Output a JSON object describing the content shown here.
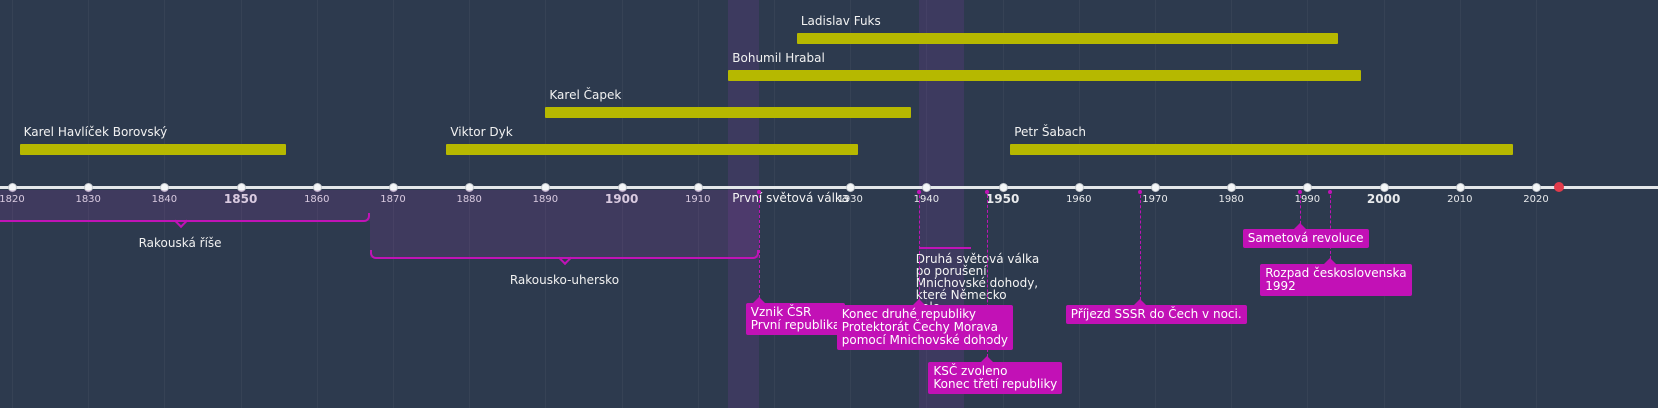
{
  "colors": {
    "background": "#2d3a4e",
    "life_bar": "#b6b800",
    "event": "#c211b6",
    "axis": "#e4e7ea",
    "now_marker": "#e23b4b"
  },
  "axis": {
    "ticks": [
      {
        "year": 1820,
        "label": "1820",
        "major": false
      },
      {
        "year": 1830,
        "label": "1830",
        "major": false
      },
      {
        "year": 1840,
        "label": "1840",
        "major": false
      },
      {
        "year": 1850,
        "label": "1850",
        "major": true
      },
      {
        "year": 1860,
        "label": "1860",
        "major": false
      },
      {
        "year": 1870,
        "label": "1870",
        "major": false
      },
      {
        "year": 1880,
        "label": "1880",
        "major": false
      },
      {
        "year": 1890,
        "label": "1890",
        "major": false
      },
      {
        "year": 1900,
        "label": "1900",
        "major": true
      },
      {
        "year": 1910,
        "label": "1910",
        "major": false
      },
      {
        "year": 1930,
        "label": "1930",
        "major": false
      },
      {
        "year": 1940,
        "label": "1940",
        "major": false
      },
      {
        "year": 1950,
        "label": "1950",
        "major": true
      },
      {
        "year": 1960,
        "label": "1960",
        "major": false
      },
      {
        "year": 1970,
        "label": "1970",
        "major": false
      },
      {
        "year": 1980,
        "label": "1980",
        "major": false
      },
      {
        "year": 1990,
        "label": "1990",
        "major": false
      },
      {
        "year": 2000,
        "label": "2000",
        "major": true
      },
      {
        "year": 2010,
        "label": "2010",
        "major": false
      },
      {
        "year": 2020,
        "label": "2020",
        "major": false
      }
    ],
    "now_year": 2023
  },
  "lifespans": [
    {
      "name": "Karel Havlíček Borovský",
      "start": 1821,
      "end": 1856
    },
    {
      "name": "Viktor Dyk",
      "start": 1877,
      "end": 1931
    },
    {
      "name": "Karel Čapek",
      "start": 1890,
      "end": 1938
    },
    {
      "name": "Bohumil Hrabal",
      "start": 1914,
      "end": 1997
    },
    {
      "name": "Ladislav Fuks",
      "start": 1923,
      "end": 1994
    },
    {
      "name": "Petr Šabach",
      "start": 1951,
      "end": 2017
    }
  ],
  "bands": [
    {
      "start": 1914,
      "end": 1918
    },
    {
      "start": 1939,
      "end": 1945
    }
  ],
  "periods": [
    {
      "label": "Rakouská říše",
      "start": 1804,
      "end": 1867
    },
    {
      "label": "Rakousko-uhersko",
      "start": 1867,
      "end": 1918
    }
  ],
  "plain_events": [
    {
      "text": "První světová válka",
      "year": 1914
    }
  ],
  "text_events": [
    {
      "text": "Druhá světová válka\npo porušení\nMnichovské dohody,\nkteré Německo\nsalo.",
      "year": 1939
    }
  ],
  "events": [
    {
      "text": "Vznik ČSR\nPrvní republika",
      "year": 1918
    },
    {
      "text": "Konec druhé republiky\nProtektorát Čechy Morava\npomocí Mnichovské dohody",
      "year": 1939
    },
    {
      "text": "KSČ zvoleno\nKonec třetí republiky",
      "year": 1948
    },
    {
      "text": "Příjezd SSSR do Čech v noci.",
      "year": 1968
    },
    {
      "text": "Sametová revoluce",
      "year": 1989
    },
    {
      "text": "Rozpad československa\n1992",
      "year": 1993
    }
  ]
}
